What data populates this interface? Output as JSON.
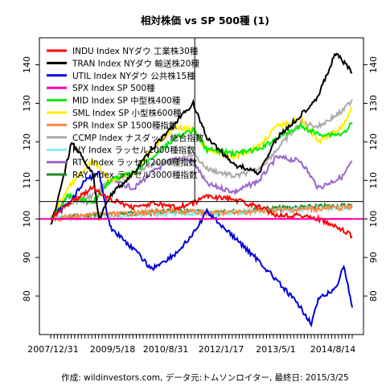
{
  "chart_data": {
    "type": "line",
    "title": "相対株価 vs SP 500種 (1)",
    "caption": "作成: wildinvestors.com, データ元:トムソンロイター, 最終日: 2015/3/25",
    "x_ticks": [
      "2007/12/31",
      "2009/5/18",
      "2010/8/31",
      "2012/1/17",
      "2013/5/1",
      "2014/8/14"
    ],
    "x_range": [
      "2007-12-31",
      "2015-03-25"
    ],
    "y_range": [
      70,
      147
    ],
    "y_ticks": [
      80,
      90,
      100,
      110,
      120,
      130,
      140
    ],
    "grid": false,
    "legend_position": "top-left",
    "reference_lines": [
      {
        "orientation": "horizontal",
        "y": 100,
        "color": "#ff00aa"
      },
      {
        "orientation": "horizontal",
        "y": 104.5,
        "color": "#000000"
      },
      {
        "orientation": "vertical",
        "x": "2011-06-15",
        "color": "#000000"
      }
    ],
    "series": [
      {
        "name": "INDU Index NYダウ 工業株30種",
        "color": "#ff0000",
        "x": [
          "2007-12-31",
          "2008-06-01",
          "2009-01-01",
          "2009-06-01",
          "2010-01-01",
          "2010-06-01",
          "2011-01-01",
          "2011-06-01",
          "2011-10-01",
          "2012-06-01",
          "2013-01-01",
          "2013-06-01",
          "2014-01-01",
          "2014-06-01",
          "2015-01-01",
          "2015-03-25"
        ],
        "values": [
          100,
          104,
          108,
          105,
          103,
          104,
          103,
          104,
          106,
          105,
          103,
          101,
          101,
          100,
          97,
          95.5
        ]
      },
      {
        "name": "TRAN Index NYダウ 輸送株20種",
        "color": "#000000",
        "x": [
          "2007-12-31",
          "2008-04-01",
          "2008-07-01",
          "2009-01-01",
          "2009-03-01",
          "2009-06-01",
          "2010-01-01",
          "2010-06-01",
          "2011-01-01",
          "2011-06-01",
          "2011-10-01",
          "2012-06-01",
          "2013-01-01",
          "2013-06-01",
          "2014-01-01",
          "2014-06-01",
          "2014-11-01",
          "2015-03-25"
        ],
        "values": [
          98,
          108,
          120,
          112,
          100,
          106,
          112,
          118,
          125,
          130,
          121,
          114,
          112,
          121,
          127,
          132,
          143,
          138
        ]
      },
      {
        "name": "UTIL Index NYダウ 公共株15種",
        "color": "#0000dd",
        "x": [
          "2007-12-31",
          "2008-06-01",
          "2008-11-01",
          "2009-03-01",
          "2009-06-01",
          "2010-01-01",
          "2010-06-01",
          "2011-01-01",
          "2011-06-01",
          "2011-10-01",
          "2012-06-01",
          "2013-01-01",
          "2013-06-01",
          "2013-12-01",
          "2014-04-01",
          "2014-06-01",
          "2014-11-01",
          "2015-01-10",
          "2015-03-25"
        ],
        "values": [
          100,
          104,
          110,
          112,
          98,
          92,
          87,
          91,
          96,
          102,
          95,
          89,
          84,
          78,
          73,
          79,
          82,
          88,
          77
        ]
      },
      {
        "name": "SPX Index SP 500種",
        "color": "#ff00aa",
        "x": [
          "2007-12-31",
          "2015-03-25"
        ],
        "values": [
          100,
          100
        ]
      },
      {
        "name": "MID Index SP 中型株400種",
        "color": "#00ee00",
        "x": [
          "2007-12-31",
          "2008-06-01",
          "2009-01-01",
          "2009-06-01",
          "2010-01-01",
          "2010-06-01",
          "2011-01-01",
          "2011-06-01",
          "2011-10-01",
          "2012-06-01",
          "2013-01-01",
          "2013-06-01",
          "2014-01-01",
          "2014-06-01",
          "2015-01-01",
          "2015-03-25"
        ],
        "values": [
          100,
          106,
          104,
          110,
          112,
          116,
          121,
          123,
          118,
          117,
          118,
          121,
          124,
          122,
          122,
          125
        ]
      },
      {
        "name": "SML Index SP 小型株600種",
        "color": "#ffee00",
        "x": [
          "2007-12-31",
          "2008-06-01",
          "2009-01-01",
          "2009-06-01",
          "2010-01-01",
          "2010-06-01",
          "2011-01-01",
          "2011-06-01",
          "2011-10-01",
          "2012-06-01",
          "2013-01-01",
          "2013-06-01",
          "2014-01-01",
          "2014-06-01",
          "2015-01-01",
          "2015-03-25"
        ],
        "values": [
          100,
          108,
          115,
          110,
          112,
          118,
          124,
          123,
          118,
          116,
          119,
          124,
          126,
          120,
          124,
          129
        ]
      },
      {
        "name": "SPR Index SP 1500種指数",
        "color": "#ff8844",
        "x": [
          "2007-12-31",
          "2009-01-01",
          "2010-01-01",
          "2011-01-01",
          "2012-01-01",
          "2013-01-01",
          "2014-01-01",
          "2015-03-25"
        ],
        "values": [
          100,
          101,
          101.5,
          102,
          101.5,
          102,
          102.5,
          103
        ]
      },
      {
        "name": "CCMP Index ナスダック 総合指数",
        "color": "#aaaaaa",
        "x": [
          "2007-12-31",
          "2008-06-01",
          "2009-01-01",
          "2009-06-01",
          "2010-01-01",
          "2010-06-01",
          "2011-01-01",
          "2011-06-01",
          "2011-10-01",
          "2012-06-01",
          "2013-01-01",
          "2013-06-01",
          "2014-01-01",
          "2014-06-01",
          "2015-01-01",
          "2015-03-25"
        ],
        "values": [
          100,
          104,
          106,
          110,
          112,
          114,
          115,
          117,
          113,
          111,
          113,
          118,
          125,
          124,
          128,
          131
        ]
      },
      {
        "name": "RIY Index ラッセル1000種指数",
        "color": "#88eeee",
        "x": [
          "2007-12-31",
          "2009-01-01",
          "2010-01-01",
          "2011-01-01",
          "2012-01-01",
          "2013-01-01",
          "2014-01-01",
          "2015-03-25"
        ],
        "values": [
          100,
          100.5,
          101,
          101.5,
          101.5,
          102,
          102.5,
          103
        ]
      },
      {
        "name": "RTY Index ラッセル2000種指数",
        "color": "#9966cc",
        "x": [
          "2007-12-31",
          "2008-06-01",
          "2009-01-01",
          "2009-06-01",
          "2010-01-01",
          "2010-06-01",
          "2011-01-01",
          "2011-06-01",
          "2011-10-01",
          "2012-06-01",
          "2013-01-01",
          "2013-06-01",
          "2014-01-01",
          "2014-06-01",
          "2015-01-01",
          "2015-03-25"
        ],
        "values": [
          100,
          106,
          104,
          110,
          108,
          112,
          116,
          115,
          109,
          107,
          110,
          116,
          115,
          108,
          111,
          115
        ]
      },
      {
        "name": "RAY Index ラッセル3000種指数",
        "color": "#228822",
        "x": [
          "2007-12-31",
          "2009-01-01",
          "2010-01-01",
          "2011-01-01",
          "2012-01-01",
          "2013-01-01",
          "2014-01-01",
          "2015-03-25"
        ],
        "values": [
          100,
          101,
          101.5,
          102,
          101.5,
          102.5,
          103,
          103.5
        ]
      }
    ]
  }
}
